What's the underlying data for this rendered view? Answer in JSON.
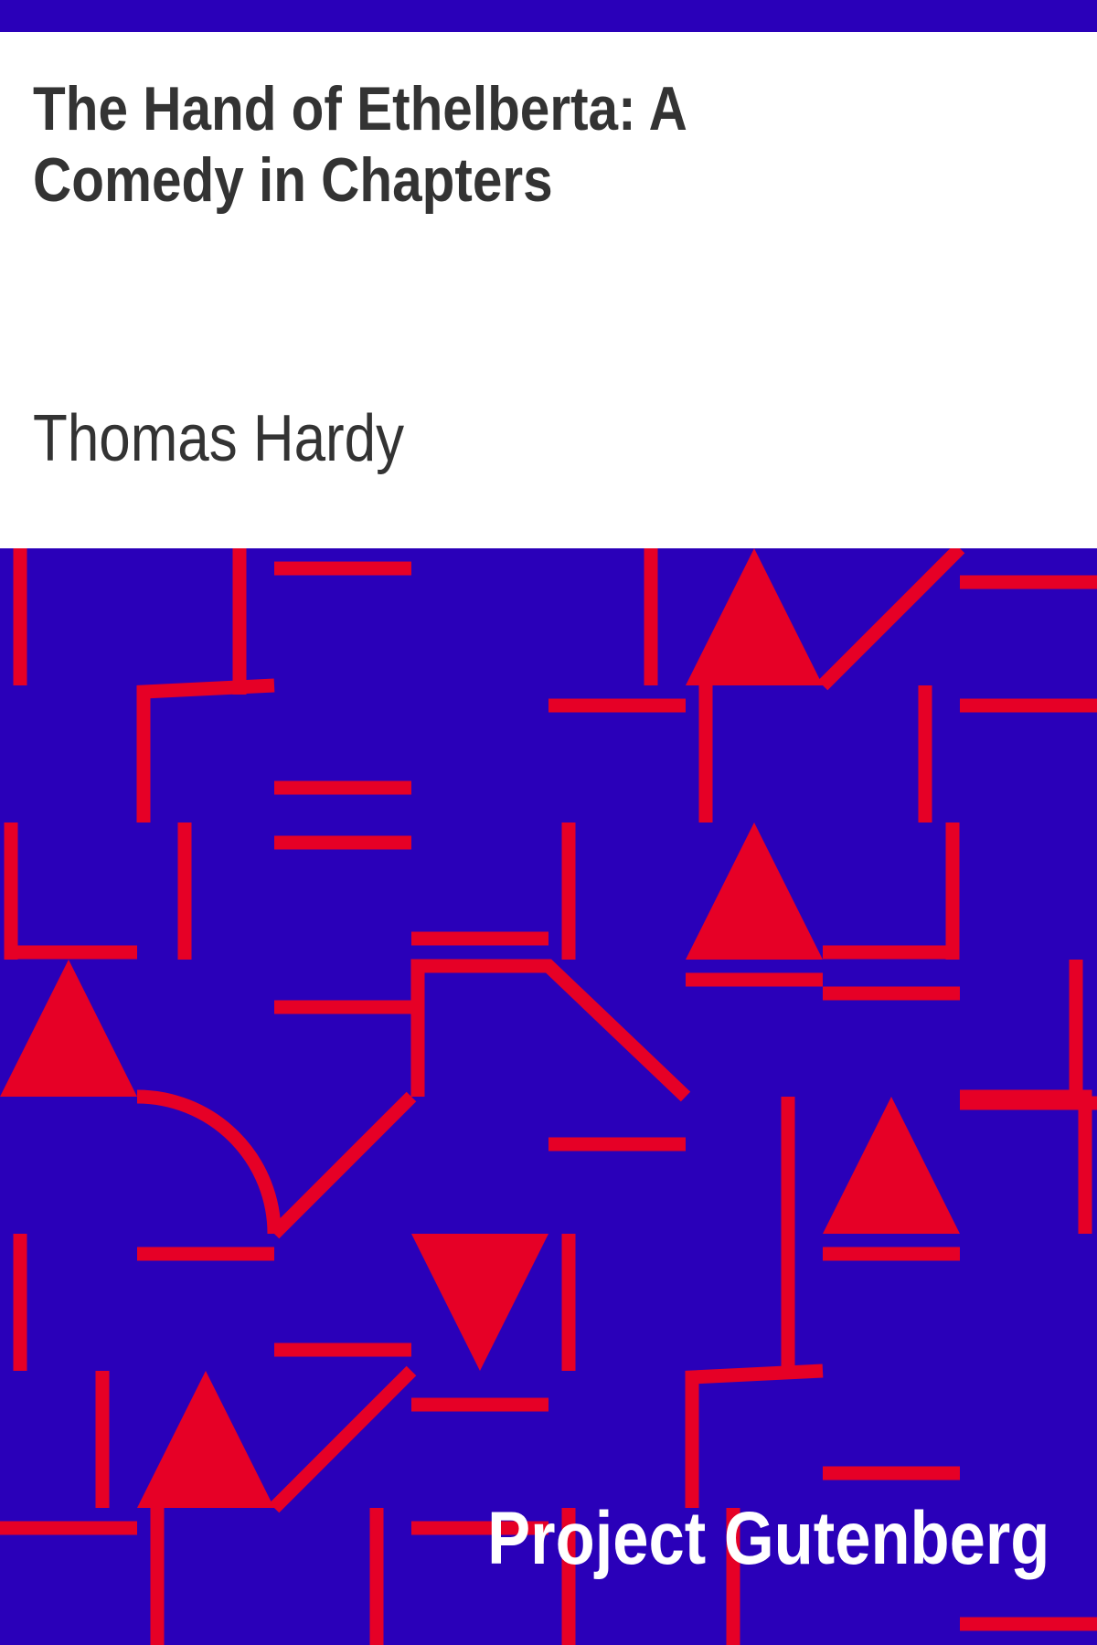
{
  "cover": {
    "title": "The Hand of Ethelberta: A Comedy in Chapters",
    "author": "Thomas Hardy",
    "publisher": "Project Gutenberg"
  },
  "colors": {
    "background": "#2a00b9",
    "accent": "#e60026",
    "text": "#333333",
    "publisher_text": "#ffffff"
  }
}
